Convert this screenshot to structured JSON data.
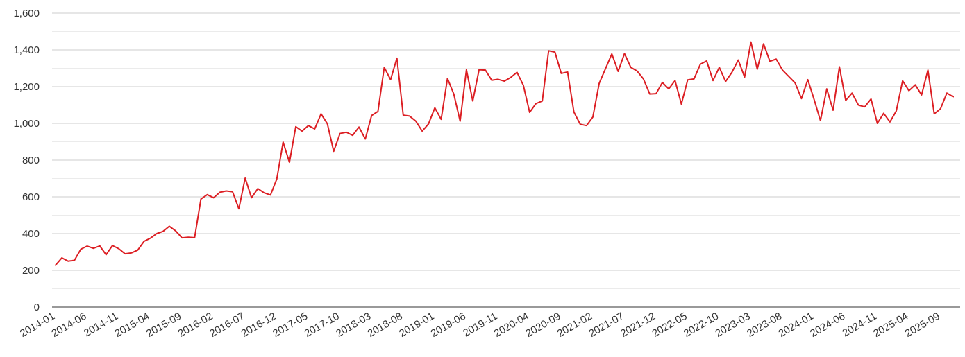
{
  "chart_data": {
    "type": "line",
    "title": "",
    "xlabel": "",
    "ylabel": "",
    "ylim": [
      0,
      1600
    ],
    "yticks": [
      0,
      200,
      400,
      600,
      800,
      1000,
      1200,
      1400,
      1600
    ],
    "ytick_labels": [
      "0",
      "200",
      "400",
      "600",
      "800",
      "1,000",
      "1,200",
      "1,400",
      "1,600"
    ],
    "grid": true,
    "line_color": "#dc1e23",
    "x_tick_labels": [
      "2014-01",
      "2014-06",
      "2014-11",
      "2015-04",
      "2015-09",
      "2016-02",
      "2016-07",
      "2016-12",
      "2017-05",
      "2017-10",
      "2018-03",
      "2018-08",
      "2019-01",
      "2019-06",
      "2019-11",
      "2020-04",
      "2020-09",
      "2021-02",
      "2021-07",
      "2021-12",
      "2022-05",
      "2022-10",
      "2023-03",
      "2023-08",
      "2024-01",
      "2024-06",
      "2024-11",
      "2025-04",
      "2025-09"
    ],
    "x_start": "2014-01",
    "series": [
      {
        "values": [
          228,
          268,
          250,
          255,
          315,
          332,
          320,
          333,
          285,
          335,
          318,
          290,
          295,
          310,
          358,
          375,
          400,
          412,
          440,
          415,
          377,
          380,
          378,
          588,
          612,
          595,
          625,
          632,
          628,
          535,
          702,
          595,
          645,
          622,
          610,
          697,
          898,
          788,
          982,
          958,
          988,
          970,
          1052,
          998,
          848,
          945,
          952,
          935,
          980,
          915,
          1043,
          1065,
          1305,
          1238,
          1355,
          1045,
          1040,
          1012,
          958,
          997,
          1085,
          1022,
          1245,
          1160,
          1012,
          1292,
          1122,
          1292,
          1290,
          1235,
          1240,
          1230,
          1250,
          1278,
          1208,
          1060,
          1108,
          1122,
          1395,
          1388,
          1272,
          1280,
          1062,
          995,
          988,
          1035,
          1218,
          1298,
          1378,
          1283,
          1380,
          1305,
          1285,
          1242,
          1160,
          1162,
          1223,
          1188,
          1233,
          1105,
          1237,
          1242,
          1322,
          1340,
          1233,
          1305,
          1228,
          1278,
          1345,
          1252,
          1443,
          1295,
          1433,
          1338,
          1350,
          1290,
          1255,
          1220,
          1135,
          1238,
          1130,
          1015,
          1188,
          1072,
          1308,
          1125,
          1165,
          1100,
          1090,
          1133,
          1000,
          1055,
          1008,
          1068,
          1232,
          1178,
          1210,
          1155,
          1290,
          1052,
          1080,
          1165,
          1145
        ]
      }
    ]
  }
}
